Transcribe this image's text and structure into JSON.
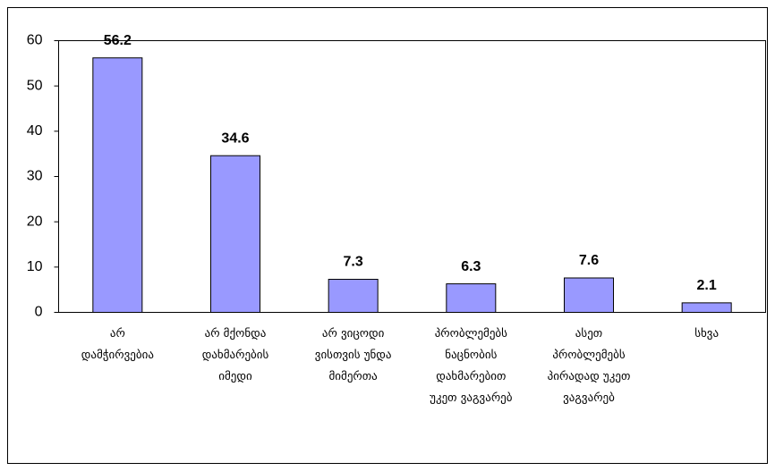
{
  "chart_data": {
    "type": "bar",
    "categories": [
      "არ\nდამჭირვებია",
      "არ მქონდა\nდახმარების\nიმედი",
      "არ ვიცოდი\nვისთვის უნდა\nმიმერთა",
      "პრობლემებს\nნაცნობის\nდახმარებით\nუკეთ ვაგვარებ",
      "ასეთ\nპრობლემებს\nპირადად უკეთ\nვაგვარებ",
      "სხვა"
    ],
    "values": [
      56.2,
      34.6,
      7.3,
      6.3,
      7.6,
      2.1
    ],
    "color": "#9999ff",
    "ylim": [
      0,
      60
    ],
    "yticks": [
      0,
      10,
      20,
      30,
      40,
      50,
      60
    ],
    "grid": false
  }
}
